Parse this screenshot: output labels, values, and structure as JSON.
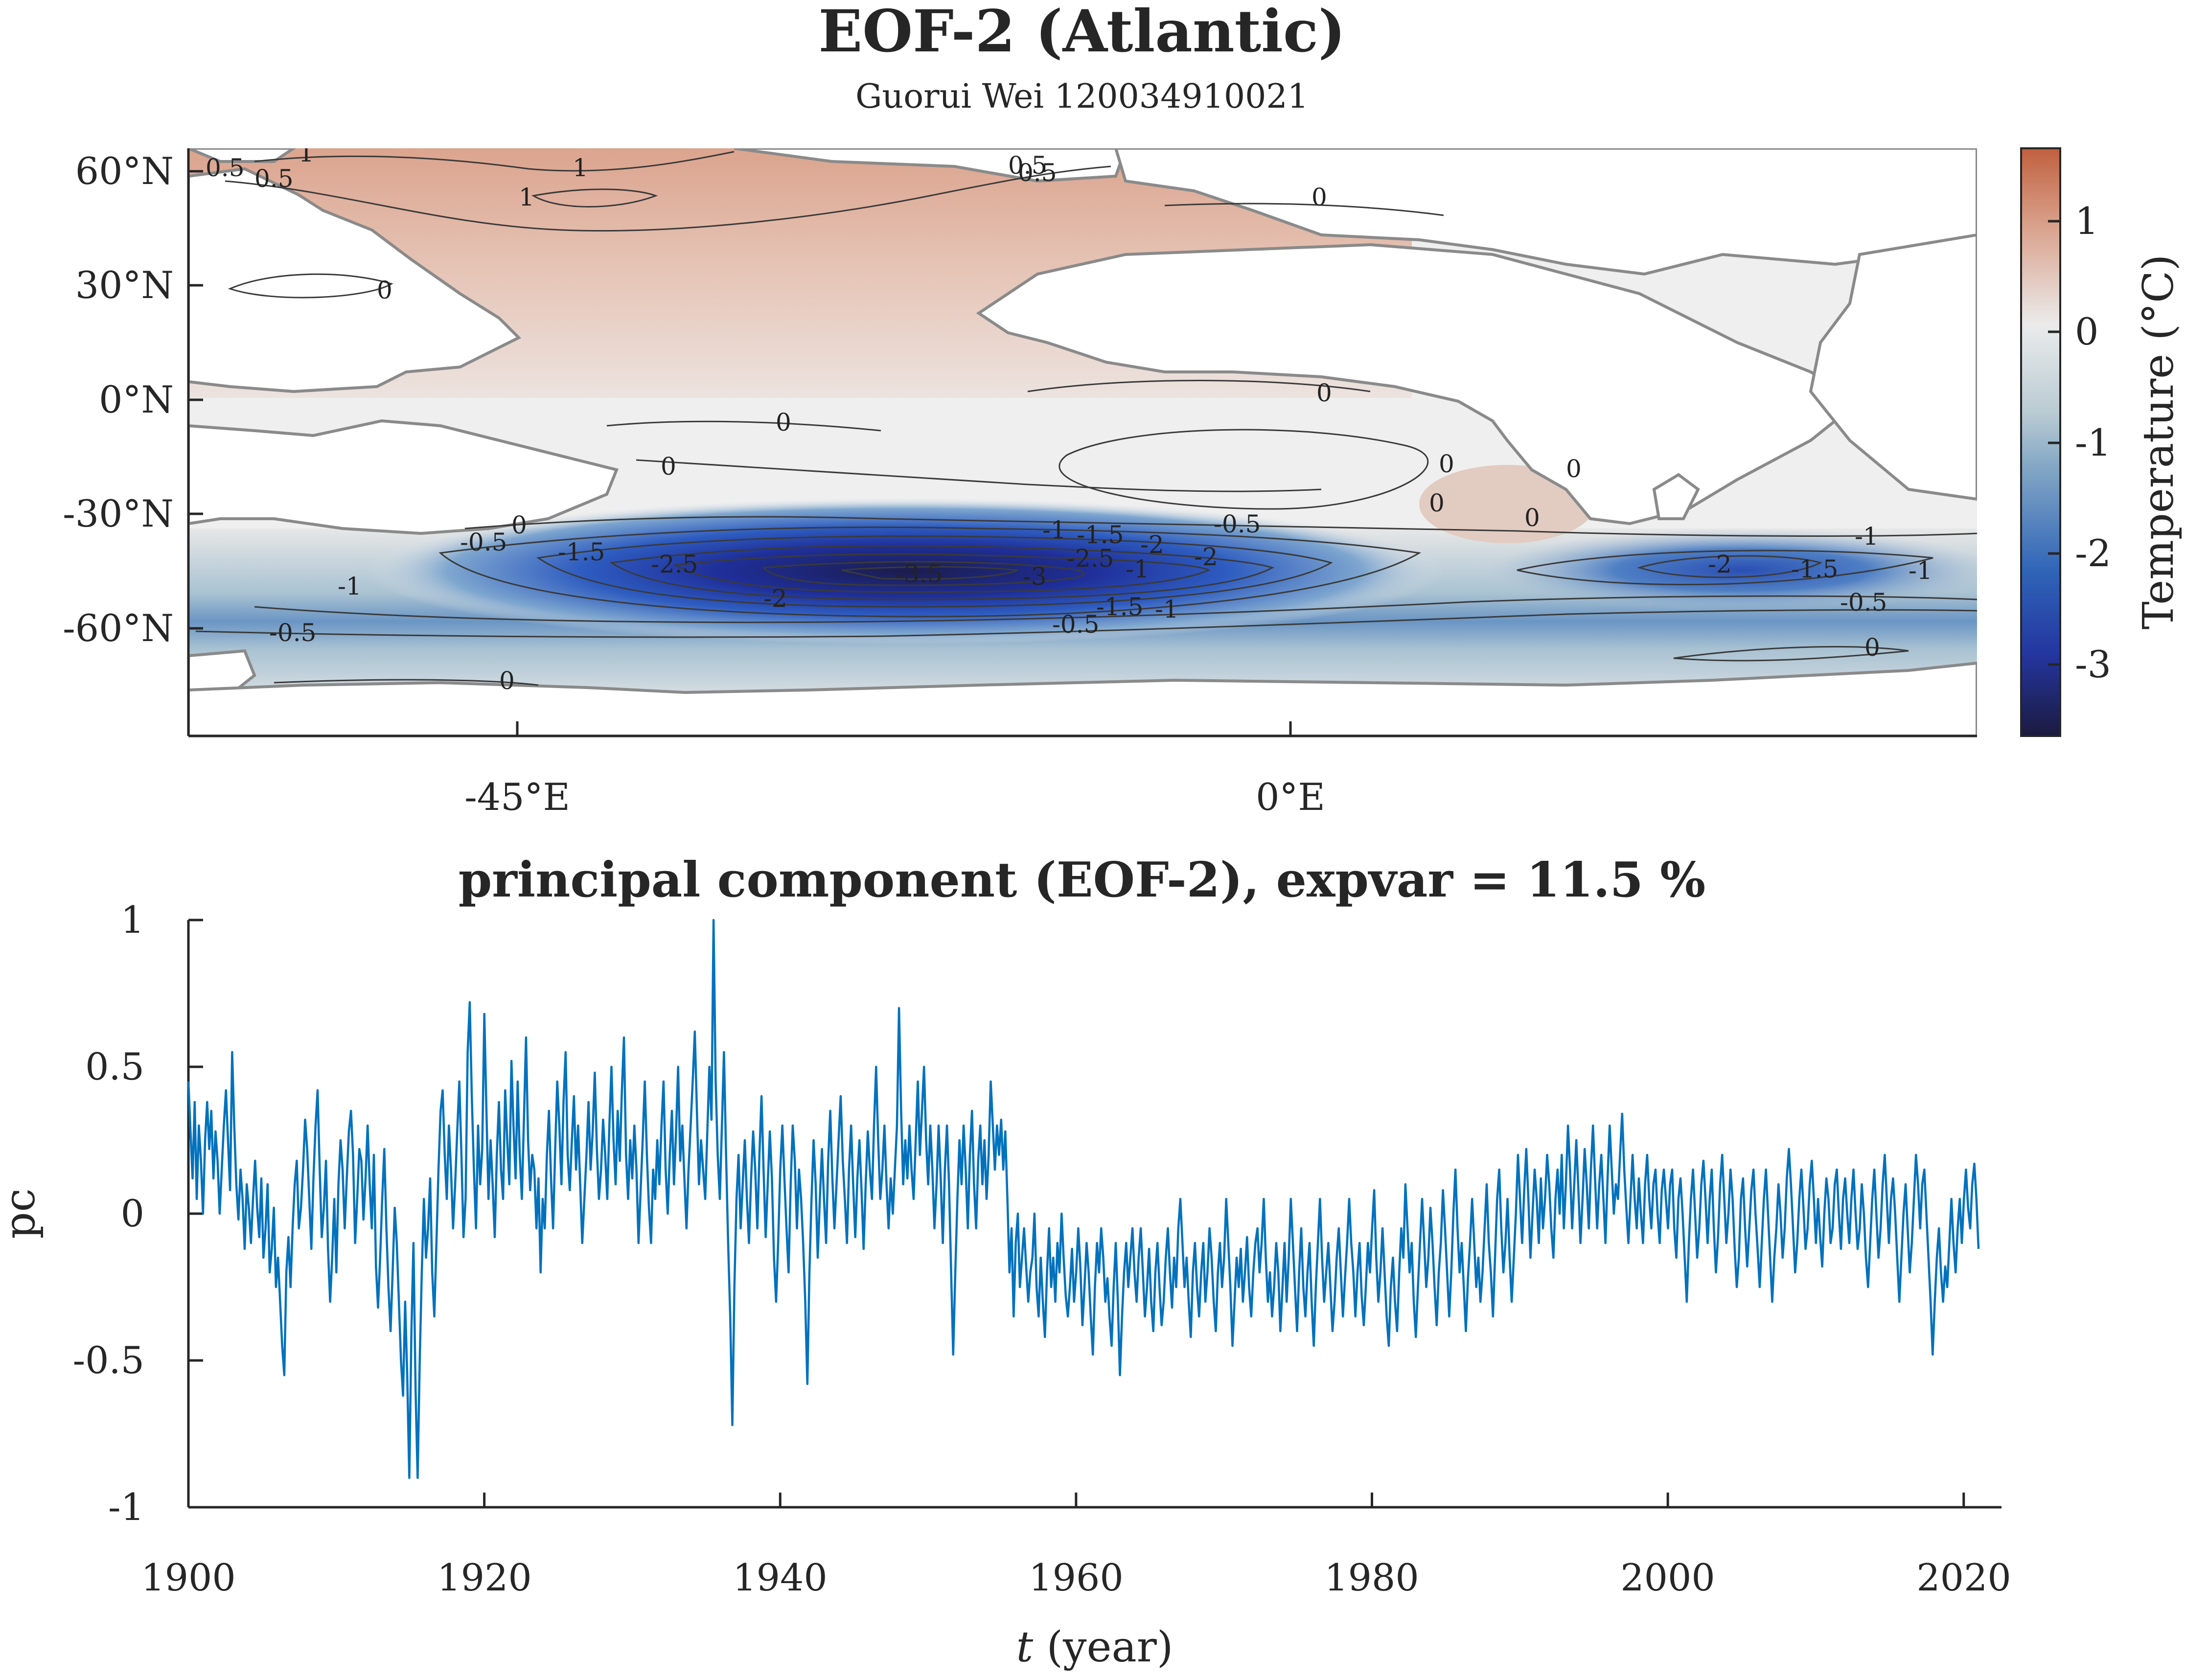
{
  "colors": {
    "series": "#0072BD",
    "neg_deep": "#1a1d4a",
    "neg": "#2a5cb8",
    "neutral": "#ececec",
    "pos": "#c8684a"
  },
  "chart_data": [
    {
      "type": "heatmap",
      "title": "EOF-2 (Atlantic)",
      "subtitle": "Guorui Wei 120034910021",
      "x_ticks": [
        "-45°E",
        "0°E"
      ],
      "x_tick_values": [
        -45,
        0
      ],
      "y_ticks": [
        "60°N",
        "30°N",
        "0°N",
        "-30°N",
        "-60°N"
      ],
      "y_tick_values": [
        60,
        30,
        0,
        -30,
        -60
      ],
      "xlim": [
        -90,
        30
      ],
      "ylim": [
        -88,
        66
      ],
      "colorbar": {
        "label": "Temperature (°C)",
        "ticks": [
          "1",
          "0",
          "-1",
          "-2",
          "-3"
        ],
        "tick_values": [
          1,
          0,
          -1,
          -2,
          -3
        ],
        "range": [
          -3.7,
          1.6
        ]
      },
      "contour_labels": [
        "1",
        "0.5",
        "1",
        "0.5",
        "1",
        "0.5",
        "0",
        "0",
        "0",
        "0",
        "0",
        "0",
        "0",
        "0",
        "0",
        "0",
        "-0.5",
        "-1.5",
        "-2.5",
        "-3.5",
        "-3",
        "-2.5",
        "-2",
        "-1",
        "-1.5",
        "-2",
        "-0.5",
        "-2",
        "-1.5",
        "-1",
        "-1",
        "-0.5",
        "-1",
        "-0.5",
        "-2",
        "-1.5",
        "-1",
        "-0.5",
        "-1",
        "0.5",
        "0",
        "0"
      ]
    },
    {
      "type": "line",
      "title": "principal component (EOF-2), expvar = 11.5 %",
      "xlabel_italic": "t",
      "xlabel_rest": " (year)",
      "ylabel": "pc",
      "xlim": [
        1900,
        2021
      ],
      "ylim": [
        -1,
        1
      ],
      "x_ticks": [
        "1900",
        "1920",
        "1940",
        "1960",
        "1980",
        "2000",
        "2020"
      ],
      "y_ticks": [
        "1",
        "0.5",
        "0",
        "-0.5",
        "-1"
      ],
      "x_tick_values": [
        1900,
        1920,
        1940,
        1960,
        1980,
        2000,
        2020
      ],
      "y_tick_values": [
        1,
        0.5,
        0,
        -0.5,
        -1
      ],
      "series": [
        {
          "start_year": 1900,
          "step_years": 0.08333,
          "color": "#0072BD",
          "values": [
            0.45,
            0.28,
            0.12,
            0.38,
            0.05,
            0.3,
            0.18,
            0.0,
            0.25,
            0.38,
            0.22,
            0.35,
            0.12,
            0.28,
            0.18,
            0.0,
            0.15,
            0.3,
            0.42,
            0.25,
            0.08,
            0.55,
            0.3,
            0.1,
            -0.02,
            0.15,
            0.05,
            -0.12,
            0.1,
            0.02,
            -0.1,
            0.05,
            0.18,
            0.02,
            -0.08,
            0.12,
            -0.15,
            -0.05,
            0.1,
            -0.2,
            -0.12,
            0.02,
            -0.25,
            -0.15,
            -0.3,
            -0.45,
            -0.55,
            -0.2,
            -0.08,
            -0.25,
            -0.05,
            0.1,
            0.18,
            -0.05,
            0.02,
            0.15,
            0.32,
            0.22,
            0.05,
            -0.12,
            0.12,
            0.3,
            0.42,
            0.15,
            -0.08,
            0.02,
            0.18,
            -0.12,
            -0.3,
            -0.15,
            0.05,
            -0.2,
            0.1,
            0.25,
            0.15,
            -0.05,
            0.12,
            0.28,
            0.35,
            0.2,
            -0.1,
            0.05,
            0.22,
            0.18,
            -0.02,
            0.12,
            0.3,
            0.1,
            -0.05,
            0.2,
            -0.18,
            -0.32,
            -0.15,
            0.05,
            0.22,
            -0.05,
            -0.25,
            -0.4,
            -0.2,
            0.02,
            -0.1,
            -0.3,
            -0.5,
            -0.62,
            -0.3,
            -0.55,
            -0.9,
            -0.4,
            -0.1,
            -0.6,
            -0.9,
            -0.5,
            -0.2,
            0.05,
            -0.15,
            -0.05,
            0.12,
            -0.2,
            -0.35,
            -0.1,
            0.15,
            0.35,
            0.42,
            0.2,
            0.05,
            0.3,
            0.15,
            -0.05,
            0.1,
            0.28,
            0.45,
            0.2,
            -0.08,
            0.05,
            0.55,
            0.72,
            0.4,
            0.15,
            -0.05,
            0.3,
            0.1,
            0.22,
            0.68,
            0.35,
            0.05,
            0.25,
            0.1,
            -0.08,
            0.2,
            0.38,
            0.15,
            0.05,
            0.42,
            0.25,
            0.1,
            0.52,
            0.3,
            0.12,
            0.45,
            0.2,
            0.05,
            0.32,
            0.6,
            0.25,
            0.08,
            0.2,
            0.15,
            -0.05,
            0.12,
            -0.2,
            0.05,
            -0.05,
            0.2,
            0.35,
            0.12,
            -0.05,
            0.22,
            0.45,
            0.3,
            0.1,
            0.38,
            0.55,
            0.2,
            0.08,
            0.25,
            0.4,
            0.15,
            0.3,
            0.1,
            -0.1,
            0.05,
            0.2,
            0.38,
            0.15,
            0.28,
            0.48,
            0.22,
            0.05,
            0.15,
            0.32,
            0.2,
            0.05,
            0.3,
            0.5,
            0.25,
            0.1,
            0.35,
            0.18,
            0.42,
            0.6,
            0.2,
            0.05,
            0.25,
            0.12,
            0.3,
            0.15,
            -0.1,
            0.08,
            0.25,
            0.45,
            0.2,
            0.02,
            -0.1,
            0.15,
            0.05,
            0.25,
            0.1,
            0.3,
            0.45,
            0.15,
            0.0,
            0.2,
            0.35,
            0.1,
            0.28,
            0.5,
            0.18,
            0.3,
            0.12,
            -0.05,
            0.15,
            0.3,
            0.45,
            0.62,
            0.35,
            0.1,
            0.25,
            0.15,
            0.05,
            0.28,
            0.5,
            0.32,
            1.0,
            0.45,
            0.2,
            0.05,
            0.3,
            0.55,
            0.2,
            -0.1,
            -0.35,
            -0.72,
            -0.25,
            0.05,
            0.2,
            -0.05,
            0.1,
            0.25,
            0.05,
            -0.1,
            0.12,
            0.28,
            0.15,
            -0.05,
            0.2,
            0.4,
            0.15,
            -0.08,
            0.1,
            0.28,
            0.12,
            -0.15,
            -0.3,
            -0.1,
            0.15,
            0.3,
            0.12,
            -0.05,
            -0.2,
            0.1,
            0.3,
            0.18,
            -0.05,
            0.15,
            0.05,
            -0.1,
            -0.3,
            -0.58,
            -0.2,
            0.05,
            0.25,
            0.1,
            -0.15,
            0.05,
            0.22,
            0.05,
            -0.1,
            0.18,
            0.35,
            0.12,
            -0.05,
            0.1,
            0.25,
            0.4,
            0.18,
            0.05,
            -0.1,
            0.15,
            0.3,
            0.1,
            -0.08,
            0.12,
            0.25,
            0.08,
            -0.12,
            0.1,
            0.28,
            0.15,
            0.05,
            0.3,
            0.5,
            0.25,
            0.05,
            0.15,
            0.3,
            0.1,
            -0.05,
            0.12,
            0.0,
            0.15,
            0.3,
            0.7,
            0.35,
            0.1,
            0.25,
            0.12,
            0.3,
            0.15,
            0.05,
            0.25,
            0.45,
            0.2,
            0.35,
            0.5,
            0.25,
            0.1,
            0.3,
            0.15,
            -0.05,
            0.1,
            0.3,
            0.12,
            -0.1,
            0.15,
            0.3,
            0.1,
            -0.2,
            -0.48,
            -0.2,
            0.05,
            0.25,
            0.1,
            0.3,
            0.15,
            -0.05,
            0.2,
            0.35,
            0.1,
            -0.05,
            0.18,
            0.3,
            0.1,
            0.25,
            0.05,
            0.2,
            0.45,
            0.3,
            0.15,
            0.3,
            0.2,
            0.32,
            0.15,
            0.28,
            0.05,
            -0.2,
            -0.05,
            -0.35,
            -0.1,
            0.0,
            -0.25,
            -0.15,
            -0.05,
            -0.18,
            -0.3,
            -0.2,
            -0.15,
            0.0,
            -0.25,
            -0.35,
            -0.15,
            -0.3,
            -0.42,
            -0.2,
            -0.05,
            -0.25,
            -0.15,
            -0.3,
            -0.1,
            -0.2,
            0.0,
            -0.15,
            -0.28,
            -0.35,
            -0.25,
            -0.12,
            -0.3,
            -0.2,
            -0.05,
            -0.18,
            -0.38,
            -0.25,
            -0.1,
            -0.2,
            -0.35,
            -0.48,
            -0.25,
            -0.1,
            -0.2,
            -0.05,
            -0.15,
            -0.3,
            -0.22,
            -0.35,
            -0.45,
            -0.25,
            -0.1,
            -0.3,
            -0.55,
            -0.35,
            -0.2,
            -0.1,
            -0.25,
            -0.15,
            -0.05,
            -0.2,
            -0.3,
            -0.15,
            -0.05,
            -0.2,
            -0.35,
            -0.25,
            -0.12,
            -0.3,
            -0.4,
            -0.2,
            -0.1,
            -0.25,
            -0.38,
            -0.3,
            -0.15,
            -0.05,
            -0.2,
            -0.32,
            -0.15,
            -0.25,
            -0.05,
            0.05,
            -0.1,
            -0.25,
            -0.15,
            -0.3,
            -0.42,
            -0.2,
            -0.1,
            -0.25,
            -0.35,
            -0.2,
            -0.1,
            -0.3,
            -0.2,
            -0.05,
            -0.15,
            -0.3,
            -0.4,
            -0.2,
            -0.1,
            -0.25,
            -0.15,
            0.05,
            -0.1,
            -0.25,
            -0.45,
            -0.3,
            -0.15,
            -0.25,
            -0.12,
            -0.3,
            -0.2,
            -0.08,
            -0.25,
            -0.35,
            -0.2,
            -0.1,
            -0.05,
            -0.2,
            -0.1,
            0.05,
            -0.15,
            -0.3,
            -0.2,
            -0.35,
            -0.25,
            -0.1,
            -0.2,
            -0.4,
            -0.25,
            -0.1,
            -0.3,
            -0.15,
            0.05,
            -0.1,
            -0.25,
            -0.4,
            -0.2,
            -0.05,
            -0.25,
            -0.35,
            -0.2,
            -0.1,
            -0.3,
            -0.45,
            -0.25,
            -0.1,
            0.05,
            -0.15,
            -0.3,
            -0.2,
            -0.1,
            -0.25,
            -0.4,
            -0.3,
            -0.15,
            -0.05,
            -0.2,
            -0.35,
            -0.22,
            -0.1,
            0.05,
            -0.1,
            -0.2,
            -0.35,
            -0.2,
            -0.1,
            -0.28,
            -0.38,
            -0.25,
            -0.1,
            -0.2,
            -0.05,
            0.08,
            -0.15,
            -0.3,
            -0.2,
            -0.05,
            -0.2,
            -0.35,
            -0.45,
            -0.25,
            -0.15,
            -0.3,
            -0.4,
            -0.2,
            -0.05,
            -0.15,
            0.1,
            -0.05,
            -0.2,
            -0.1,
            -0.3,
            -0.42,
            -0.25,
            -0.1,
            0.05,
            -0.1,
            -0.25,
            -0.15,
            0.02,
            -0.1,
            -0.25,
            -0.38,
            -0.2,
            -0.1,
            0.08,
            -0.05,
            -0.2,
            -0.35,
            -0.2,
            0.0,
            0.15,
            -0.05,
            -0.2,
            -0.1,
            -0.25,
            -0.4,
            -0.22,
            -0.1,
            0.05,
            -0.1,
            -0.25,
            -0.15,
            -0.3,
            -0.2,
            -0.05,
            0.1,
            -0.1,
            -0.2,
            -0.35,
            -0.15,
            0.05,
            0.15,
            -0.05,
            -0.2,
            -0.1,
            0.05,
            -0.15,
            -0.3,
            -0.15,
            0.0,
            0.2,
            0.05,
            -0.1,
            0.08,
            0.22,
            0.05,
            -0.15,
            0.0,
            0.15,
            0.05,
            -0.1,
            0.12,
            -0.05,
            0.05,
            0.2,
            0.1,
            -0.05,
            -0.15,
            0.05,
            0.15,
            0.0,
            0.2,
            -0.05,
            0.1,
            0.3,
            0.15,
            -0.05,
            0.1,
            0.25,
            0.08,
            -0.1,
            0.05,
            0.22,
            0.1,
            -0.05,
            0.15,
            0.3,
            0.12,
            -0.05,
            0.1,
            0.2,
            0.05,
            -0.1,
            0.12,
            0.3,
            0.15,
            0.0,
            0.1,
            0.05,
            0.2,
            0.34,
            0.15,
            0.02,
            -0.1,
            0.05,
            0.2,
            0.05,
            -0.05,
            0.12,
            0.0,
            -0.1,
            0.1,
            0.2,
            0.05,
            -0.05,
            0.1,
            0.15,
            0.0,
            -0.1,
            0.08,
            0.15,
            0.05,
            -0.05,
            0.1,
            0.15,
            -0.05,
            -0.15,
            0.05,
            0.12,
            0.0,
            -0.15,
            -0.3,
            -0.1,
            0.05,
            0.15,
            0.0,
            -0.15,
            -0.05,
            0.1,
            0.18,
            0.05,
            -0.1,
            0.05,
            0.15,
            -0.05,
            -0.2,
            -0.08,
            0.1,
            0.2,
            0.05,
            -0.1,
            0.0,
            0.15,
            0.05,
            -0.12,
            -0.25,
            -0.15,
            0.05,
            0.12,
            -0.05,
            -0.18,
            -0.05,
            0.08,
            0.15,
            0.0,
            -0.12,
            -0.25,
            -0.1,
            0.05,
            0.15,
            0.0,
            -0.15,
            -0.3,
            -0.15,
            -0.05,
            0.1,
            0.0,
            -0.15,
            -0.05,
            0.12,
            0.22,
            0.1,
            -0.05,
            -0.2,
            -0.1,
            0.05,
            0.15,
            0.02,
            -0.12,
            -0.05,
            0.1,
            0.18,
            0.05,
            -0.1,
            0.05,
            -0.08,
            -0.18,
            0.0,
            0.12,
            0.05,
            -0.1,
            -0.05,
            0.1,
            0.15,
            0.0,
            -0.12,
            0.05,
            0.12,
            0.0,
            -0.1,
            0.05,
            0.15,
            0.0,
            -0.12,
            -0.05,
            0.1,
            0.0,
            -0.15,
            -0.25,
            -0.1,
            0.05,
            0.15,
            0.0,
            -0.15,
            -0.05,
            0.1,
            0.2,
            0.05,
            -0.1,
            0.05,
            0.12,
            0.0,
            -0.15,
            -0.3,
            -0.15,
            0.0,
            0.1,
            -0.05,
            -0.2,
            -0.1,
            0.05,
            0.2,
            0.1,
            -0.05,
            0.1,
            0.15,
            0.0,
            -0.15,
            -0.3,
            -0.48,
            -0.3,
            -0.15,
            -0.05,
            -0.2,
            -0.3,
            -0.18,
            -0.25,
            -0.1,
            0.05,
            -0.1,
            -0.2,
            -0.05,
            0.05,
            -0.1,
            0.05,
            0.15,
            0.02,
            -0.05,
            0.1,
            0.17,
            0.05,
            -0.12
          ]
        }
      ]
    }
  ]
}
